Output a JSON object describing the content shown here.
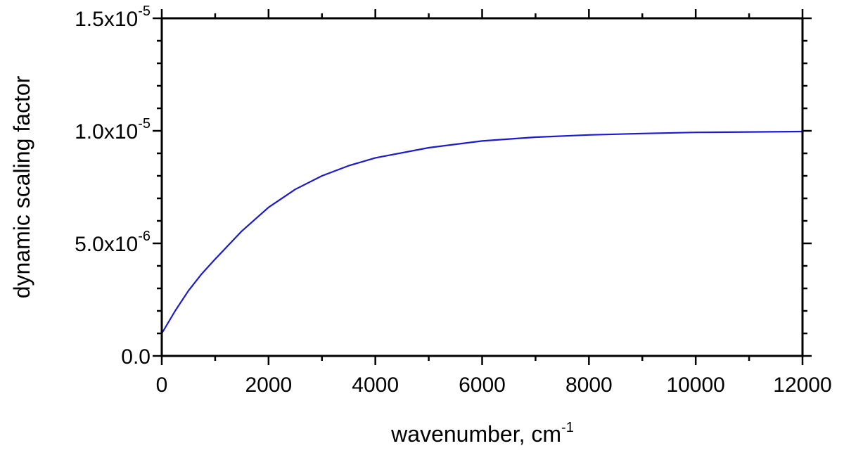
{
  "chart_data": {
    "type": "line",
    "xlabel": "wavenumber, cm",
    "xlabel_superscript": "-1",
    "ylabel": "dynamic scaling factor",
    "xlim": [
      0,
      12000
    ],
    "ylim": [
      0,
      1.5e-05
    ],
    "grid": false,
    "legend": "none",
    "x_ticks": [
      0,
      2000,
      4000,
      6000,
      8000,
      10000,
      12000
    ],
    "x_tick_labels": [
      "0",
      "2000",
      "4000",
      "6000",
      "8000",
      "10000",
      "12000"
    ],
    "y_ticks": [
      {
        "value": 0,
        "mantissa": "0.0",
        "exponent": ""
      },
      {
        "value": 5e-06,
        "mantissa": "5.0x10",
        "exponent": "-6"
      },
      {
        "value": 1e-05,
        "mantissa": "1.0x10",
        "exponent": "-5"
      },
      {
        "value": 1.5e-05,
        "mantissa": "1.5x10",
        "exponent": "-5"
      }
    ],
    "series": [
      {
        "color": "#1a1ad6",
        "x": [
          0,
          250,
          500,
          750,
          1000,
          1500,
          2000,
          2500,
          3000,
          3500,
          4000,
          5000,
          6000,
          7000,
          8000,
          9000,
          10000,
          11000,
          12000
        ],
        "y": [
          1e-06,
          2e-06,
          2.9e-06,
          3.65e-06,
          4.3e-06,
          5.55e-06,
          6.6e-06,
          7.4e-06,
          8e-06,
          8.45e-06,
          8.8e-06,
          9.25e-06,
          9.55e-06,
          9.72e-06,
          9.82e-06,
          9.88e-06,
          9.93e-06,
          9.95e-06,
          9.97e-06
        ]
      }
    ]
  }
}
